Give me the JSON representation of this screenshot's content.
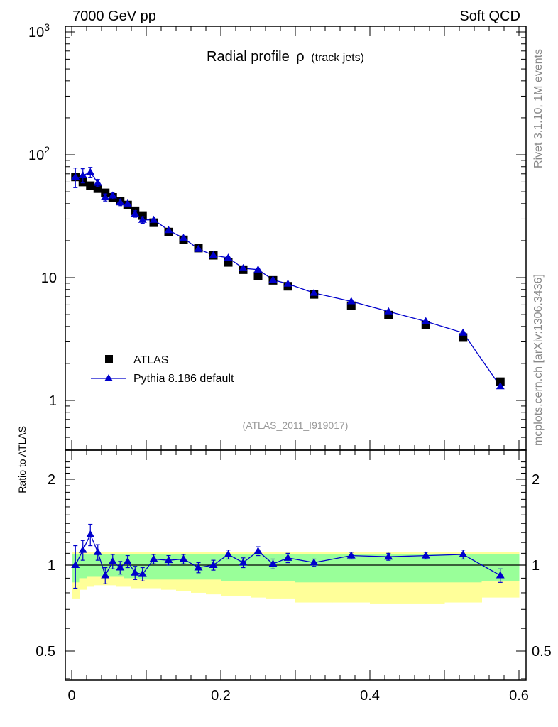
{
  "header": {
    "energy_label": "7000 GeV pp",
    "category_label": "Soft QCD"
  },
  "side_labels": {
    "rivet": "Rivet 3.1.10,  1M events",
    "mcplots": "mcplots.cern.ch [arXiv:1306.3436]"
  },
  "colors": {
    "data": "#000000",
    "mc": "#0000cc",
    "band_inner": "#99ff99",
    "band_outer": "#ffff99"
  },
  "chart_data": [
    {
      "panel": "main",
      "type": "scatter",
      "title": "Radial profile",
      "title_symbol": "ρ",
      "title_suffix": "(track jets)",
      "yscale": "log",
      "ylim": [
        0.4,
        1200
      ],
      "xlim": [
        -0.005,
        0.6
      ],
      "y_tick_labels": [
        {
          "label": "1",
          "value": 1
        },
        {
          "label": "10",
          "value": 10
        },
        {
          "label": "10",
          "sup": "2",
          "value": 100
        },
        {
          "label": "10",
          "sup": "3",
          "value": 1000
        }
      ],
      "watermark": "(ATLAS_2011_I919017)",
      "legend_position": "bottom-left",
      "series": [
        {
          "name": "ATLAS",
          "marker": "square",
          "x": [
            0.005,
            0.015,
            0.025,
            0.035,
            0.045,
            0.055,
            0.065,
            0.075,
            0.085,
            0.095,
            0.11,
            0.13,
            0.15,
            0.17,
            0.19,
            0.21,
            0.23,
            0.25,
            0.27,
            0.29,
            0.325,
            0.375,
            0.425,
            0.475,
            0.525,
            0.575
          ],
          "y": [
            66,
            60,
            56,
            53,
            49,
            45,
            42,
            39,
            35,
            32,
            28,
            23.5,
            20.3,
            17.4,
            15.2,
            13.3,
            11.6,
            10.3,
            9.5,
            8.5,
            7.3,
            5.9,
            4.95,
            4.1,
            3.25,
            1.42
          ]
        },
        {
          "name": "Pythia 8.186 default",
          "marker": "triangle",
          "x": [
            0.005,
            0.015,
            0.025,
            0.035,
            0.045,
            0.055,
            0.065,
            0.075,
            0.085,
            0.095,
            0.11,
            0.13,
            0.15,
            0.17,
            0.19,
            0.21,
            0.23,
            0.25,
            0.27,
            0.29,
            0.325,
            0.375,
            0.425,
            0.475,
            0.525,
            0.575
          ],
          "y": [
            66,
            68,
            72,
            59,
            45,
            46.5,
            41,
            40,
            33,
            29.5,
            29.5,
            24.3,
            21,
            17.1,
            15.2,
            14.5,
            11.9,
            11.6,
            9.6,
            8.9,
            7.5,
            6.4,
            5.3,
            4.4,
            3.55,
            1.3
          ],
          "yerr": [
            12,
            9,
            7,
            4,
            3,
            3,
            2.5,
            2,
            2,
            1.8,
            1.2,
            1,
            0.8,
            0.6,
            0.5,
            0.5,
            0.4,
            0.4,
            0.35,
            0.3,
            0.2,
            0.2,
            0.15,
            0.15,
            0.12,
            0.06
          ]
        }
      ]
    },
    {
      "panel": "ratio",
      "type": "scatter",
      "ylabel": "Ratio to ATLAS",
      "yscale": "log",
      "ylim": [
        0.4,
        2.4
      ],
      "xlim": [
        -0.005,
        0.6
      ],
      "x_tick_labels": [
        "0",
        "0.2",
        "0.4",
        "0.6"
      ],
      "x_tick_values": [
        0,
        0.2,
        0.4,
        0.6
      ],
      "y_tick_labels": [
        "0.5",
        "1",
        "2"
      ],
      "y_tick_values": [
        0.5,
        1,
        2
      ],
      "band_edges": [
        0,
        0.01,
        0.02,
        0.03,
        0.04,
        0.05,
        0.06,
        0.07,
        0.08,
        0.09,
        0.1,
        0.12,
        0.14,
        0.16,
        0.18,
        0.2,
        0.22,
        0.24,
        0.26,
        0.28,
        0.3,
        0.35,
        0.4,
        0.45,
        0.5,
        0.55,
        0.6
      ],
      "band_inner_lo": [
        0.87,
        0.9,
        0.91,
        0.91,
        0.91,
        0.91,
        0.91,
        0.9,
        0.9,
        0.89,
        0.89,
        0.89,
        0.89,
        0.89,
        0.89,
        0.88,
        0.88,
        0.88,
        0.88,
        0.88,
        0.87,
        0.87,
        0.87,
        0.87,
        0.87,
        0.88
      ],
      "band_inner_hi": [
        1.09,
        1.09,
        1.09,
        1.09,
        1.09,
        1.09,
        1.09,
        1.09,
        1.09,
        1.09,
        1.09,
        1.09,
        1.09,
        1.09,
        1.09,
        1.09,
        1.09,
        1.09,
        1.09,
        1.09,
        1.09,
        1.09,
        1.09,
        1.09,
        1.09,
        1.09
      ],
      "band_outer_lo": [
        0.76,
        0.82,
        0.84,
        0.85,
        0.85,
        0.85,
        0.84,
        0.84,
        0.83,
        0.83,
        0.83,
        0.82,
        0.81,
        0.8,
        0.79,
        0.78,
        0.78,
        0.77,
        0.76,
        0.76,
        0.74,
        0.74,
        0.73,
        0.73,
        0.74,
        0.77
      ],
      "band_outer_hi": [
        1.11,
        1.11,
        1.11,
        1.11,
        1.11,
        1.11,
        1.11,
        1.11,
        1.11,
        1.11,
        1.11,
        1.11,
        1.11,
        1.11,
        1.11,
        1.11,
        1.11,
        1.11,
        1.11,
        1.11,
        1.11,
        1.11,
        1.11,
        1.11,
        1.11,
        1.11
      ],
      "series": [
        {
          "name": "Pythia 8.186 default / ATLAS",
          "x": [
            0.005,
            0.015,
            0.025,
            0.035,
            0.045,
            0.055,
            0.065,
            0.075,
            0.085,
            0.095,
            0.11,
            0.13,
            0.15,
            0.17,
            0.19,
            0.21,
            0.23,
            0.25,
            0.27,
            0.29,
            0.325,
            0.375,
            0.425,
            0.475,
            0.525,
            0.575
          ],
          "y": [
            1.0,
            1.13,
            1.28,
            1.11,
            0.92,
            1.03,
            0.98,
            1.03,
            0.94,
            0.93,
            1.05,
            1.04,
            1.05,
            0.98,
            1.0,
            1.09,
            1.02,
            1.12,
            1.01,
            1.06,
            1.02,
            1.08,
            1.07,
            1.08,
            1.09,
            0.92
          ],
          "yerr": [
            0.17,
            0.09,
            0.11,
            0.07,
            0.06,
            0.06,
            0.05,
            0.05,
            0.05,
            0.05,
            0.04,
            0.04,
            0.04,
            0.04,
            0.04,
            0.04,
            0.04,
            0.04,
            0.04,
            0.04,
            0.03,
            0.03,
            0.03,
            0.03,
            0.04,
            0.05
          ]
        }
      ]
    }
  ]
}
